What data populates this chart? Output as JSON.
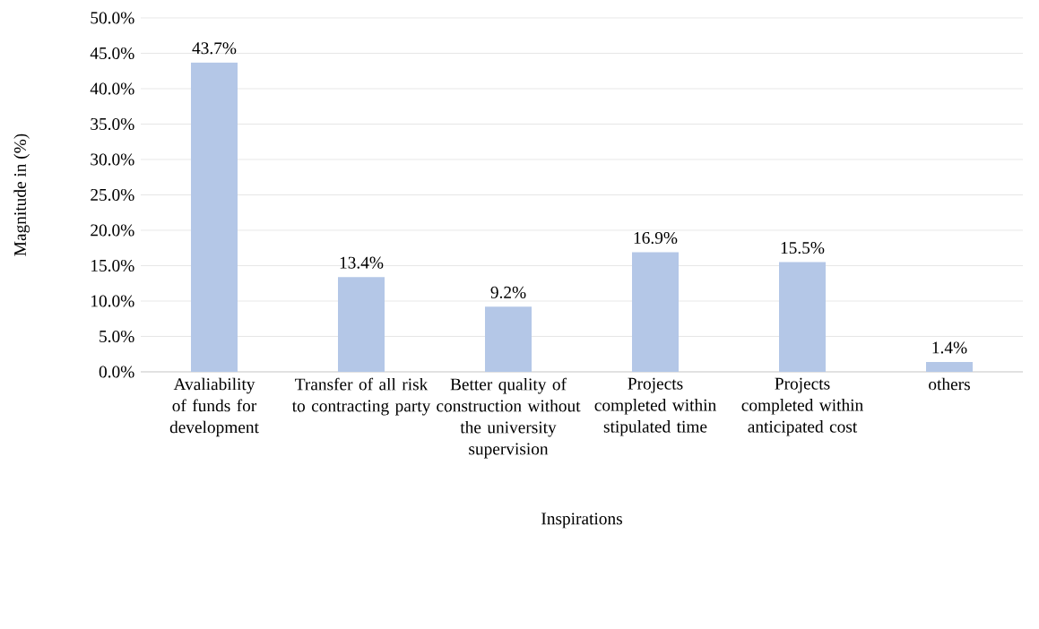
{
  "chart_data": {
    "type": "bar",
    "xlabel": "Inspirations",
    "ylabel": "Magnitude in (%)",
    "categories": [
      "Avaliability of funds for development",
      "Transfer of all risk to contracting party",
      "Better quality of construction without the university supervision",
      "Projects completed within stipulated time",
      "Projects completed within anticipated cost",
      "others"
    ],
    "values": [
      43.7,
      13.4,
      9.2,
      16.9,
      15.5,
      1.4
    ],
    "value_labels": [
      "43.7%",
      "13.4%",
      "9.2%",
      "16.9%",
      "15.5%",
      "1.4%"
    ],
    "color": "#b4c7e7",
    "ylim": [
      0,
      50
    ],
    "yticks": [
      {
        "value": 0,
        "label": "0.0%"
      },
      {
        "value": 5,
        "label": "5.0%"
      },
      {
        "value": 10,
        "label": "10.0%"
      },
      {
        "value": 15,
        "label": "15.0%"
      },
      {
        "value": 20,
        "label": "20.0%"
      },
      {
        "value": 25,
        "label": "25.0%"
      },
      {
        "value": 30,
        "label": "30.0%"
      },
      {
        "value": 35,
        "label": "35.0%"
      },
      {
        "value": 40,
        "label": "40.0%"
      },
      {
        "value": 45,
        "label": "45.0%"
      },
      {
        "value": 50,
        "label": "50.0%"
      }
    ],
    "grid": "y"
  }
}
